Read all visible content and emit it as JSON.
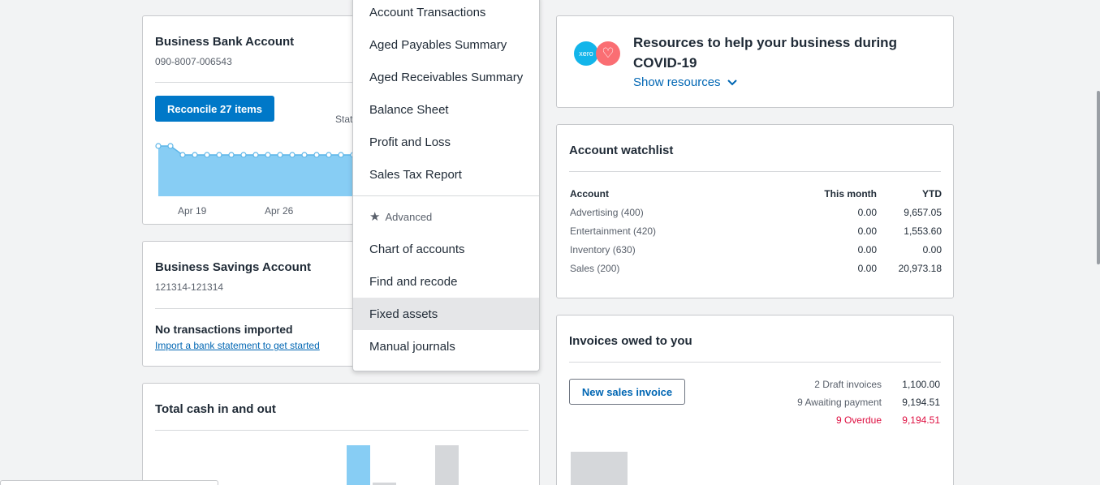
{
  "bank_account": {
    "title": "Business Bank Account",
    "number": "090-8007-006543",
    "reconcile_label": "Reconcile 27 items",
    "stat_label": "Stat",
    "chart_x_labels": [
      "Apr 19",
      "Apr 26"
    ]
  },
  "savings_account": {
    "title": "Business Savings Account",
    "number": "121314-121314",
    "empty_title": "No transactions imported",
    "import_link": "Import a bank statement to get started"
  },
  "total_cash": {
    "title": "Total cash in and out"
  },
  "menu": {
    "items_top": [
      "Account Transactions",
      "Aged Payables Summary",
      "Aged Receivables Summary",
      "Balance Sheet",
      "Profit and Loss",
      "Sales Tax Report"
    ],
    "advanced_label": "Advanced",
    "items_advanced": [
      "Chart of accounts",
      "Find and recode",
      "Fixed assets",
      "Manual journals"
    ],
    "hovered_item": "Fixed assets"
  },
  "resources": {
    "logo_text": "xero",
    "title_line1": "Resources to help your business during",
    "title_line2": "COVID-19",
    "link": "Show resources"
  },
  "watchlist": {
    "title": "Account watchlist",
    "headers": {
      "account": "Account",
      "month": "This month",
      "ytd": "YTD"
    },
    "rows": [
      {
        "account": "Advertising (400)",
        "month": "0.00",
        "ytd": "9,657.05"
      },
      {
        "account": "Entertainment (420)",
        "month": "0.00",
        "ytd": "1,553.60"
      },
      {
        "account": "Inventory (630)",
        "month": "0.00",
        "ytd": "0.00"
      },
      {
        "account": "Sales (200)",
        "month": "0.00",
        "ytd": "20,973.18"
      }
    ]
  },
  "invoices": {
    "title": "Invoices owed to you",
    "new_button": "New sales invoice",
    "rows": [
      {
        "label": "2 Draft invoices",
        "value": "1,100.00",
        "status": "normal"
      },
      {
        "label": "9 Awaiting payment",
        "value": "9,194.51",
        "status": "normal"
      },
      {
        "label": "9 Overdue",
        "value": "9,194.51",
        "status": "overdue"
      }
    ]
  },
  "colors": {
    "primary": "#0078c8",
    "overdue": "#de0e40",
    "chart_fill": "#87cdf4",
    "bar_gray": "#d5d7da"
  }
}
